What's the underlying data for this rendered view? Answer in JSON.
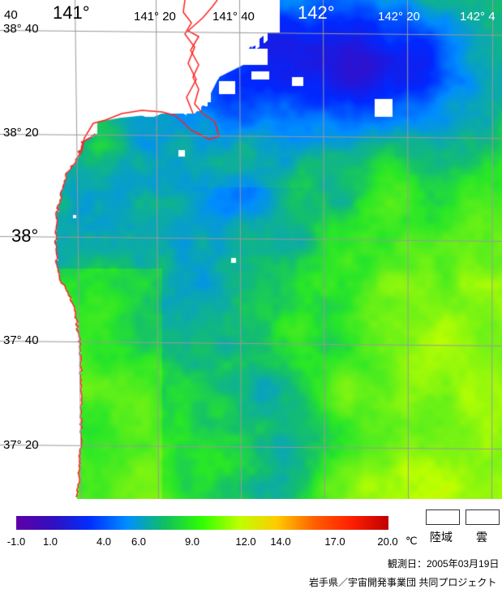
{
  "map": {
    "lon_labels": [
      {
        "text": "141°",
        "size": "big"
      },
      {
        "text": "141° 20",
        "size": "small"
      },
      {
        "text": "141° 40",
        "size": "small"
      },
      {
        "text": "142°",
        "size": "big"
      },
      {
        "text": "142° 20",
        "size": "small"
      },
      {
        "text": "142° 4",
        "size": "small"
      }
    ],
    "lat_labels": [
      {
        "text": "38° 40"
      },
      {
        "text": "38° 20"
      },
      {
        "text": "38°"
      },
      {
        "text": "37° 40"
      },
      {
        "text": "37° 20"
      }
    ],
    "corner_label": "40",
    "colors": {
      "coastline": "#ff2020",
      "land": "#ffffff",
      "cloud": "#ffffff",
      "grid": "#9a9a9a"
    }
  },
  "legend": {
    "ticks": [
      "-1.0",
      "1.0",
      "4.0",
      "6.0",
      "9.0",
      "12.0",
      "14.0",
      "17.0",
      "20.0"
    ],
    "unit": "℃",
    "land_label": "陸域",
    "cloud_label": "雲",
    "gradient_colors": [
      "#6000a8",
      "#3010c0",
      "#0030ff",
      "#0090ff",
      "#10c060",
      "#30ff00",
      "#c0ff00",
      "#ffcc00",
      "#ff6000",
      "#ff2000",
      "#c00000"
    ]
  },
  "footer": {
    "observed": "観測日：2005年03月19日",
    "credit": "岩手県／宇宙開発事業団 共同プロジェクト"
  }
}
